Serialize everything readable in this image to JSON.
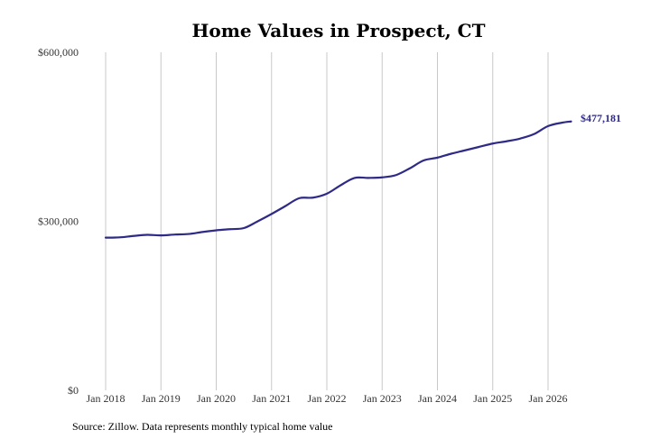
{
  "chart_data": {
    "type": "line",
    "title": "Home Values in Prospect, CT",
    "xlabel": "",
    "ylabel": "",
    "x_ticks": [
      "Jan 2018",
      "Jan 2019",
      "Jan 2020",
      "Jan 2021",
      "Jan 2022",
      "Jan 2023",
      "Jan 2024",
      "Jan 2025",
      "Jan 2026"
    ],
    "y_ticks": [
      "$0",
      "$300,000",
      "$600,000"
    ],
    "y_tick_values": [
      0,
      300000,
      600000
    ],
    "ylim": [
      0,
      600000
    ],
    "xlim": [
      "2018-01",
      "2026-06"
    ],
    "grid": "vertical",
    "series": [
      {
        "color": "#2e2a86",
        "points": [
          {
            "x": "2018-01",
            "y": 271000
          },
          {
            "x": "2018-04",
            "y": 271500
          },
          {
            "x": "2018-07",
            "y": 274000
          },
          {
            "x": "2018-10",
            "y": 276000
          },
          {
            "x": "2019-01",
            "y": 275000
          },
          {
            "x": "2019-04",
            "y": 276500
          },
          {
            "x": "2019-07",
            "y": 277500
          },
          {
            "x": "2019-10",
            "y": 281000
          },
          {
            "x": "2020-01",
            "y": 284000
          },
          {
            "x": "2020-04",
            "y": 286000
          },
          {
            "x": "2020-07",
            "y": 288000
          },
          {
            "x": "2020-10",
            "y": 300000
          },
          {
            "x": "2021-01",
            "y": 313000
          },
          {
            "x": "2021-04",
            "y": 327000
          },
          {
            "x": "2021-07",
            "y": 341000
          },
          {
            "x": "2021-10",
            "y": 342000
          },
          {
            "x": "2022-01",
            "y": 349000
          },
          {
            "x": "2022-04",
            "y": 364000
          },
          {
            "x": "2022-07",
            "y": 377000
          },
          {
            "x": "2022-10",
            "y": 377000
          },
          {
            "x": "2023-01",
            "y": 378000
          },
          {
            "x": "2023-04",
            "y": 382000
          },
          {
            "x": "2023-07",
            "y": 394000
          },
          {
            "x": "2023-10",
            "y": 408000
          },
          {
            "x": "2024-01",
            "y": 413000
          },
          {
            "x": "2024-04",
            "y": 420000
          },
          {
            "x": "2024-07",
            "y": 426000
          },
          {
            "x": "2024-10",
            "y": 432000
          },
          {
            "x": "2025-01",
            "y": 438000
          },
          {
            "x": "2025-04",
            "y": 442000
          },
          {
            "x": "2025-07",
            "y": 447000
          },
          {
            "x": "2025-10",
            "y": 455000
          },
          {
            "x": "2026-01",
            "y": 469000
          },
          {
            "x": "2026-04",
            "y": 475000
          },
          {
            "x": "2026-06",
            "y": 477181
          }
        ]
      }
    ],
    "end_label": "$477,181",
    "source": "Source: Zillow. Data represents monthly typical home value"
  }
}
